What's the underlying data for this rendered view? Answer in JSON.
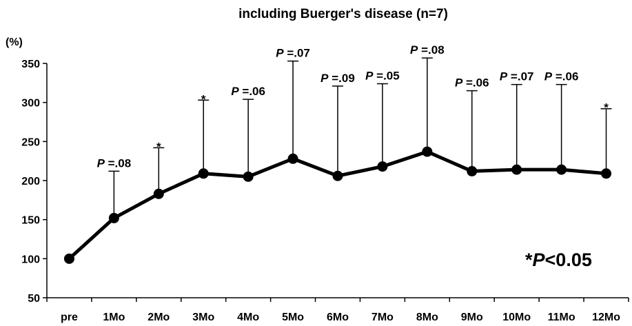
{
  "chart_data": {
    "type": "line",
    "title": "including Buerger's disease (n=7)",
    "y_unit": "(%)",
    "categories": [
      "pre",
      "1Mo",
      "2Mo",
      "3Mo",
      "4Mo",
      "5Mo",
      "6Mo",
      "7Mo",
      "8Mo",
      "9Mo",
      "10Mo",
      "11Mo",
      "12Mo"
    ],
    "values": [
      100,
      152,
      183,
      209,
      205,
      228,
      206,
      218,
      237,
      212,
      214,
      214,
      209
    ],
    "error_upper": [
      null,
      212,
      242,
      303,
      304,
      353,
      321,
      324,
      357,
      315,
      323,
      323,
      292
    ],
    "annotations": [
      {
        "category": "1Mo",
        "italic": "P",
        "text": " =.08"
      },
      {
        "category": "2Mo",
        "text": "*"
      },
      {
        "category": "3Mo",
        "text": "*"
      },
      {
        "category": "4Mo",
        "italic": "P",
        "text": " =.06"
      },
      {
        "category": "5Mo",
        "italic": "P",
        "text": " =.07"
      },
      {
        "category": "6Mo",
        "italic": "P",
        "text": " =.09"
      },
      {
        "category": "7Mo",
        "italic": "P",
        "text": " =.05"
      },
      {
        "category": "8Mo",
        "italic": "P",
        "text": " =.08"
      },
      {
        "category": "9Mo",
        "italic": "P",
        "text": " =.06"
      },
      {
        "category": "10Mo",
        "italic": "P",
        "text": " =.07"
      },
      {
        "category": "11Mo",
        "italic": "P",
        "text": " =.06"
      },
      {
        "category": "12Mo",
        "text": "*"
      }
    ],
    "significance_legend": {
      "prefix": "*",
      "italic": "P",
      "suffix": "<0.05"
    },
    "ylim": [
      50,
      350
    ],
    "yticks": [
      50,
      100,
      150,
      200,
      250,
      300,
      350
    ],
    "grid": false,
    "line_color": "#000000",
    "marker": "filled-circle"
  }
}
